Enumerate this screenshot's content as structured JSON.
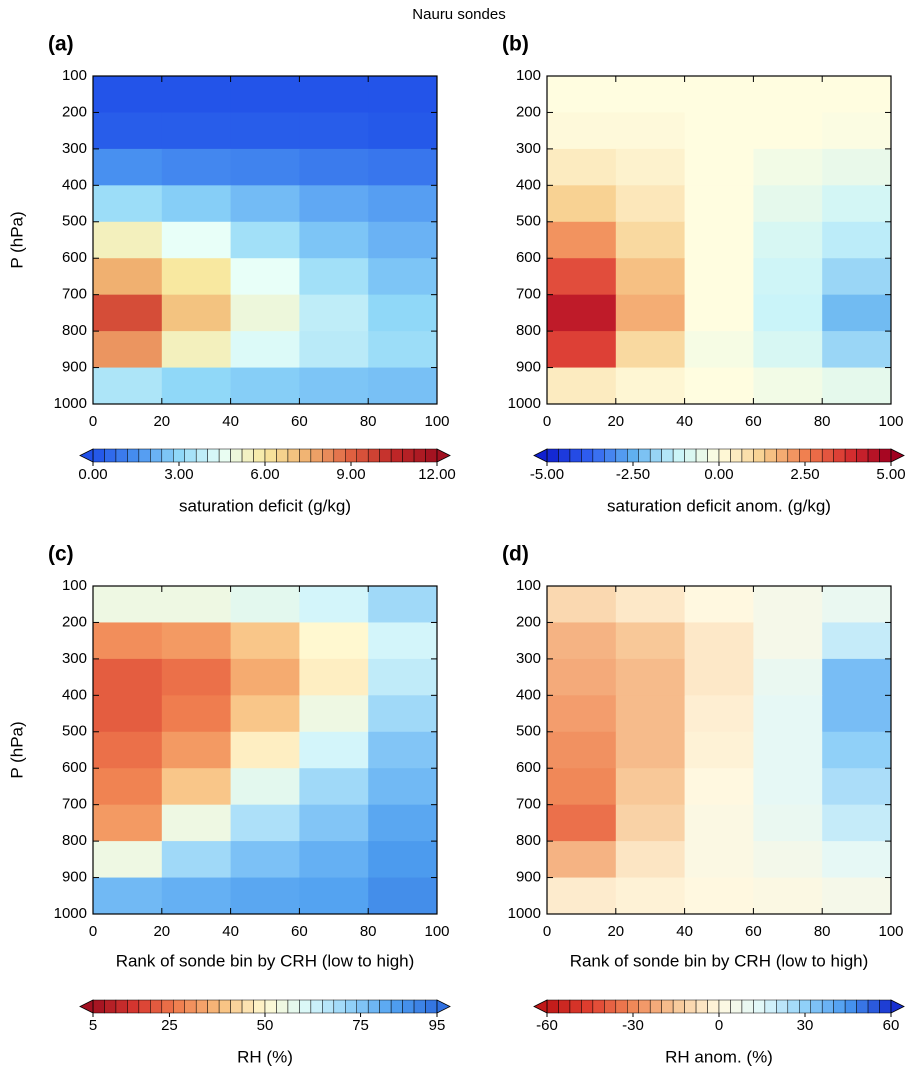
{
  "title": "Nauru sondes",
  "chart_data": [
    {
      "type": "heatmap",
      "panel_label": "(a)",
      "ylabel": "P (hPa)",
      "xbins": [
        0,
        20,
        40,
        60,
        80,
        100
      ],
      "ybins": [
        100,
        200,
        300,
        400,
        500,
        600,
        700,
        800,
        900,
        1000
      ],
      "values": [
        [
          0.1,
          0.1,
          0.1,
          0.1,
          0.1
        ],
        [
          0.3,
          0.3,
          0.3,
          0.3,
          0.2
        ],
        [
          1.5,
          1.3,
          1.2,
          1.0,
          0.9
        ],
        [
          3.2,
          2.8,
          2.4,
          2.0,
          1.8
        ],
        [
          5.5,
          4.5,
          3.3,
          2.6,
          2.2
        ],
        [
          7.5,
          6,
          4.5,
          3.3,
          2.6
        ],
        [
          9.5,
          7,
          5,
          3.8,
          3.0
        ],
        [
          8,
          5.5,
          4.3,
          3.7,
          3.2
        ],
        [
          3.5,
          3,
          2.8,
          2.6,
          2.5
        ]
      ],
      "xlim": [
        0,
        100
      ],
      "ylim": [
        1000,
        100
      ],
      "xticks": [
        0,
        20,
        40,
        60,
        80,
        100
      ],
      "yticks": [
        100,
        200,
        300,
        400,
        500,
        600,
        700,
        800,
        900,
        1000
      ],
      "colorbar": {
        "label": "saturation deficit (g/kg)",
        "lim": [
          0,
          12
        ],
        "ticks": [
          {
            "value": 0,
            "label": "0.00"
          },
          {
            "value": 3,
            "label": "3.00"
          },
          {
            "value": 6,
            "label": "6.00"
          },
          {
            "value": 9,
            "label": "9.00"
          },
          {
            "value": 12,
            "label": "12.00"
          }
        ],
        "colors": [
          "#2050e8",
          "#4890f0",
          "#90d8f8",
          "#e8fff8",
          "#f8e8a0",
          "#f0b070",
          "#e06040",
          "#c02828",
          "#a01020"
        ]
      }
    },
    {
      "type": "heatmap",
      "panel_label": "(b)",
      "xbins": [
        0,
        20,
        40,
        60,
        80,
        100
      ],
      "ybins": [
        100,
        200,
        300,
        400,
        500,
        600,
        700,
        800,
        900,
        1000
      ],
      "values": [
        [
          0,
          0,
          0,
          0,
          0
        ],
        [
          0.1,
          0.1,
          0,
          0,
          -0.1
        ],
        [
          0.5,
          0.3,
          0,
          -0.3,
          -0.5
        ],
        [
          1.2,
          0.6,
          0,
          -0.6,
          -1.0
        ],
        [
          2.2,
          1.0,
          0,
          -0.9,
          -1.4
        ],
        [
          3.3,
          1.5,
          0,
          -1.1,
          -1.8
        ],
        [
          4.3,
          1.8,
          0,
          -1.2,
          -2.3
        ],
        [
          3.5,
          1.0,
          -0.2,
          -0.9,
          -1.8
        ],
        [
          0.5,
          0.2,
          0,
          -0.3,
          -0.6
        ]
      ],
      "xlim": [
        0,
        100
      ],
      "ylim": [
        1000,
        100
      ],
      "xticks": [
        0,
        20,
        40,
        60,
        80,
        100
      ],
      "yticks": [
        100,
        200,
        300,
        400,
        500,
        600,
        700,
        800,
        900,
        1000
      ],
      "colorbar": {
        "label": "saturation deficit anom. (g/kg)",
        "lim": [
          -5,
          5
        ],
        "ticks": [
          {
            "value": -5,
            "label": "-5.00"
          },
          {
            "value": -2.5,
            "label": "-2.50"
          },
          {
            "value": 0,
            "label": "0.00"
          },
          {
            "value": 2.5,
            "label": "2.50"
          },
          {
            "value": 5,
            "label": "5.00"
          }
        ],
        "colors": [
          "#1020d0",
          "#3060f0",
          "#60b0f0",
          "#c8f4fa",
          "#fffde0",
          "#f8d090",
          "#f08050",
          "#d83030",
          "#a00020"
        ]
      }
    },
    {
      "type": "heatmap",
      "panel_label": "(c)",
      "ylabel": "P (hPa)",
      "xlabel": "Rank of sonde bin by CRH (low to high)",
      "xbins": [
        0,
        20,
        40,
        60,
        80,
        100
      ],
      "ybins": [
        100,
        200,
        300,
        400,
        500,
        600,
        700,
        800,
        900,
        1000
      ],
      "values": [
        [
          55,
          55,
          58,
          62,
          70
        ],
        [
          30,
          32,
          40,
          50,
          62
        ],
        [
          22,
          25,
          35,
          48,
          65
        ],
        [
          22,
          27,
          40,
          55,
          70
        ],
        [
          25,
          32,
          48,
          62,
          75
        ],
        [
          28,
          40,
          58,
          70,
          78
        ],
        [
          32,
          55,
          68,
          75,
          82
        ],
        [
          55,
          70,
          76,
          80,
          85
        ],
        [
          78,
          80,
          82,
          83,
          88
        ]
      ],
      "xlim": [
        0,
        100
      ],
      "ylim": [
        1000,
        100
      ],
      "xticks": [
        0,
        20,
        40,
        60,
        80,
        100
      ],
      "yticks": [
        100,
        200,
        300,
        400,
        500,
        600,
        700,
        800,
        900,
        1000
      ],
      "colorbar": {
        "label": "RH (%)",
        "lim": [
          5,
          95
        ],
        "ticks": [
          5,
          25,
          50,
          75,
          95
        ],
        "colors": [
          "#a01020",
          "#d83830",
          "#f08050",
          "#f8c080",
          "#fff8d0",
          "#d8f8fa",
          "#90d0f8",
          "#50a0f0",
          "#3070e0"
        ]
      }
    },
    {
      "type": "heatmap",
      "panel_label": "(d)",
      "xlabel": "Rank of sonde bin by CRH (low to high)",
      "xbins": [
        0,
        20,
        40,
        60,
        80,
        100
      ],
      "ybins": [
        100,
        200,
        300,
        400,
        500,
        600,
        700,
        800,
        900,
        1000
      ],
      "values": [
        [
          -10,
          -5,
          0,
          5,
          10
        ],
        [
          -20,
          -15,
          -5,
          5,
          20
        ],
        [
          -22,
          -18,
          -5,
          10,
          35
        ],
        [
          -25,
          -18,
          -3,
          12,
          35
        ],
        [
          -28,
          -18,
          -2,
          12,
          30
        ],
        [
          -30,
          -15,
          0,
          12,
          25
        ],
        [
          -35,
          -12,
          2,
          10,
          20
        ],
        [
          -20,
          -6,
          2,
          6,
          12
        ],
        [
          -4,
          -2,
          0,
          2,
          5
        ]
      ],
      "xlim": [
        0,
        100
      ],
      "ylim": [
        1000,
        100
      ],
      "xticks": [
        0,
        20,
        40,
        60,
        80,
        100
      ],
      "yticks": [
        100,
        200,
        300,
        400,
        500,
        600,
        700,
        800,
        900,
        1000
      ],
      "colorbar": {
        "label": "RH anom. (%)",
        "lim": [
          -60,
          60
        ],
        "ticks": [
          -60,
          -30,
          0,
          30,
          60
        ],
        "colors": [
          "#c01818",
          "#e04030",
          "#f08858",
          "#f8c898",
          "#fff8e0",
          "#e0f8fa",
          "#90d0f8",
          "#4898f0",
          "#1830d0"
        ]
      }
    }
  ]
}
